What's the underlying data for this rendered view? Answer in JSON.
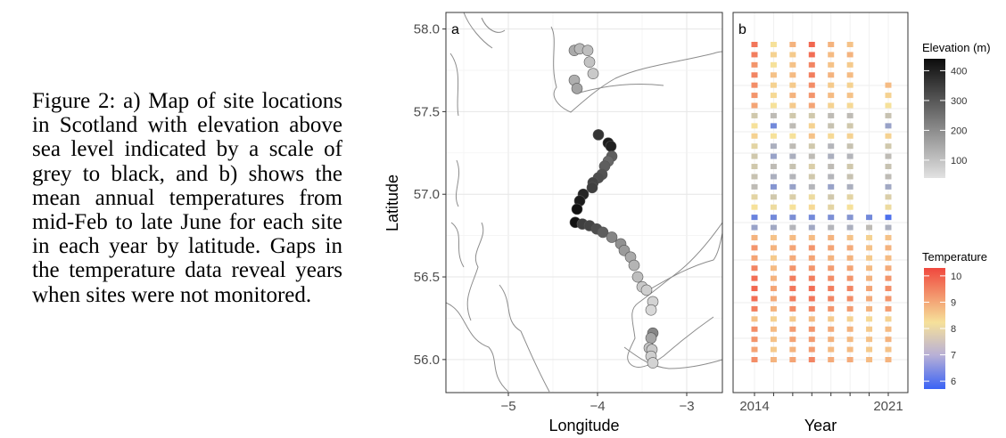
{
  "caption": "Figure 2: a) Map of site locations in Scotland with elevation above sea level indicated by a scale of grey to black, and b) shows the mean annual temperatures from mid-Feb to late June for each site in each year by latitude. Gaps in the temperature data reveal years when sites were not monitored.",
  "colors": {
    "temp_low": "#3a63f5",
    "temp_mid": "#f6e19a",
    "temp_high": "#f0483e",
    "elev_low": "#e2e2e2",
    "elev_high": "#0c0c0c"
  },
  "chart_data": [
    {
      "type": "scatter",
      "panel": "a",
      "xlabel": "Longitude",
      "ylabel": "Latitude",
      "xlim": [
        -5.7,
        -2.6
      ],
      "ylim": [
        55.8,
        58.1
      ],
      "xticks": [
        -5,
        -4,
        -3
      ],
      "xtick_labels": [
        "−5",
        "−4",
        "−3"
      ],
      "yticks": [
        56.0,
        56.5,
        57.0,
        57.5,
        58.0
      ],
      "ytick_labels": [
        "56.0",
        "56.5",
        "57.0",
        "57.5",
        "58.0"
      ],
      "grid": true,
      "series": [
        {
          "x": [
            -4.26,
            -4.2,
            -4.11,
            -4.05,
            -4.09,
            -4.26,
            -4.23,
            -3.99,
            -3.88,
            -3.85,
            -3.84,
            -3.88,
            -3.92,
            -3.95,
            -3.99,
            -4.05,
            -4.06,
            -4.16,
            -4.2,
            -4.23,
            -4.25,
            -4.17,
            -4.09,
            -4.01,
            -3.94,
            -3.84,
            -3.74,
            -3.7,
            -3.63,
            -3.59,
            -3.55,
            -3.5,
            -3.45,
            -3.38,
            -3.4,
            -3.38,
            -3.4,
            -3.42,
            -3.39,
            -3.4,
            -3.38
          ],
          "y": [
            57.87,
            57.88,
            57.87,
            57.73,
            57.8,
            57.69,
            57.64,
            57.36,
            57.31,
            57.29,
            57.23,
            57.2,
            57.17,
            57.12,
            57.1,
            57.07,
            57.04,
            57.0,
            56.96,
            56.91,
            56.83,
            56.82,
            56.81,
            56.79,
            56.77,
            56.74,
            56.7,
            56.66,
            56.62,
            56.57,
            56.5,
            56.44,
            56.42,
            56.35,
            56.3,
            56.16,
            56.13,
            56.07,
            56.06,
            56.02,
            55.98
          ],
          "elevation": [
            150,
            120,
            110,
            90,
            100,
            140,
            160,
            380,
            430,
            420,
            300,
            280,
            300,
            320,
            330,
            350,
            360,
            410,
            430,
            450,
            450,
            360,
            350,
            330,
            300,
            220,
            200,
            180,
            150,
            130,
            110,
            90,
            80,
            70,
            60,
            220,
            160,
            100,
            90,
            80,
            70
          ]
        }
      ]
    },
    {
      "type": "heatmap",
      "panel": "b",
      "xlabel": "Year",
      "xtick_labels": [
        "2014",
        "2021"
      ],
      "years": [
        2014,
        2015,
        2016,
        2017,
        2018,
        2019,
        2020,
        2021
      ],
      "temperature_rows": [
        [
          9.4,
          8.0,
          8.6,
          9.6,
          8.6,
          8.4,
          null,
          null
        ],
        [
          9.3,
          8.2,
          8.3,
          9.5,
          8.5,
          8.6,
          null,
          null
        ],
        [
          9.0,
          8.0,
          8.4,
          9.2,
          8.4,
          8.3,
          null,
          null
        ],
        [
          9.2,
          8.4,
          8.5,
          9.3,
          8.6,
          8.5,
          null,
          null
        ],
        [
          9.1,
          8.2,
          8.3,
          9.1,
          8.3,
          8.2,
          null,
          8.5
        ],
        [
          9.0,
          8.1,
          8.6,
          9.0,
          8.5,
          8.4,
          null,
          8.2
        ],
        [
          8.8,
          8.0,
          8.3,
          8.8,
          8.2,
          8.1,
          null,
          8.0
        ],
        [
          7.6,
          7.4,
          7.6,
          7.6,
          7.4,
          7.4,
          null,
          7.5
        ],
        [
          8.0,
          6.6,
          7.4,
          8.2,
          7.5,
          7.6,
          null,
          7.0
        ],
        [
          8.2,
          8.0,
          8.0,
          8.4,
          8.1,
          8.2,
          null,
          8.2
        ],
        [
          7.8,
          7.2,
          7.4,
          7.6,
          7.3,
          7.5,
          null,
          7.6
        ],
        [
          7.6,
          7.0,
          7.2,
          7.4,
          7.2,
          7.3,
          null,
          7.4
        ],
        [
          7.6,
          7.4,
          7.5,
          7.7,
          7.4,
          7.6,
          null,
          7.5
        ],
        [
          7.5,
          7.2,
          7.3,
          7.6,
          7.3,
          7.5,
          null,
          7.4
        ],
        [
          7.4,
          6.8,
          7.0,
          7.3,
          7.0,
          7.2,
          null,
          7.1
        ],
        [
          7.8,
          7.6,
          7.7,
          7.9,
          7.6,
          7.8,
          null,
          7.7
        ],
        [
          8.0,
          7.9,
          8.0,
          8.1,
          7.8,
          8.0,
          null,
          7.9
        ],
        [
          6.5,
          6.6,
          6.7,
          6.6,
          6.7,
          6.8,
          6.6,
          6.2
        ],
        [
          7.0,
          7.1,
          7.3,
          7.1,
          7.3,
          7.2,
          7.4,
          7.2
        ],
        [
          8.6,
          8.4,
          8.5,
          8.5,
          8.6,
          8.4,
          8.2,
          8.4
        ],
        [
          9.0,
          8.6,
          8.8,
          9.0,
          8.8,
          8.7,
          8.4,
          8.6
        ],
        [
          8.8,
          8.3,
          8.7,
          8.8,
          8.6,
          8.6,
          8.3,
          8.5
        ],
        [
          9.2,
          8.5,
          9.0,
          9.0,
          8.9,
          8.8,
          8.5,
          8.7
        ],
        [
          9.5,
          8.6,
          9.3,
          9.3,
          9.1,
          9.0,
          8.6,
          9.0
        ],
        [
          9.6,
          8.8,
          9.4,
          9.5,
          9.3,
          9.2,
          8.8,
          9.1
        ],
        [
          9.5,
          8.7,
          9.3,
          9.4,
          9.2,
          9.1,
          8.7,
          9.0
        ],
        [
          9.3,
          8.6,
          9.1,
          9.2,
          9.0,
          8.9,
          8.6,
          8.9
        ],
        [
          8.4,
          8.2,
          8.3,
          8.5,
          8.3,
          8.2,
          8.1,
          8.2
        ],
        [
          9.1,
          8.5,
          8.9,
          9.0,
          8.7,
          8.6,
          8.3,
          8.5
        ],
        [
          9.0,
          8.4,
          8.8,
          8.9,
          8.6,
          8.5,
          8.4,
          8.6
        ],
        [
          8.8,
          8.3,
          8.6,
          8.9,
          8.5,
          8.5,
          8.3,
          8.4
        ],
        [
          9.1,
          8.6,
          8.8,
          9.2,
          8.7,
          8.7,
          8.5,
          8.6
        ]
      ],
      "legends": [
        {
          "title": "Elevation (m)",
          "ticks": [
            400,
            300,
            200,
            100
          ]
        },
        {
          "title": "Temperature",
          "ticks": [
            10,
            9,
            8,
            7,
            6
          ]
        }
      ]
    }
  ]
}
